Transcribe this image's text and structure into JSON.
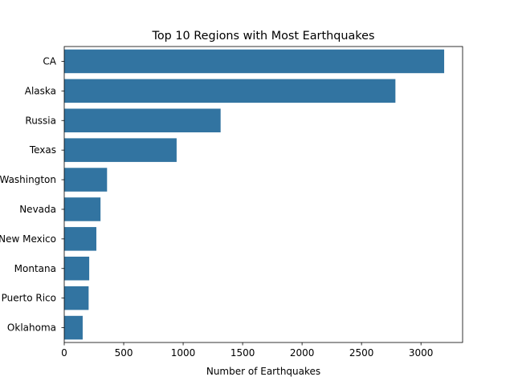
{
  "chart_data": {
    "type": "bar",
    "orientation": "horizontal",
    "title": "Top 10 Regions with Most Earthquakes",
    "xlabel": "Number of Earthquakes",
    "ylabel": "",
    "categories": [
      "CA",
      "Alaska",
      "Russia",
      "Texas",
      "Washington",
      "Nevada",
      "New Mexico",
      "Montana",
      "Puerto Rico",
      "Oklahoma"
    ],
    "series": [
      {
        "values": [
          3195,
          2785,
          1315,
          945,
          360,
          305,
          270,
          210,
          205,
          155
        ]
      }
    ],
    "xlim": [
      0,
      3350
    ],
    "xticks": [
      0,
      500,
      1000,
      1500,
      2000,
      2500,
      3000
    ],
    "xtick_labels": [
      "0",
      "500",
      "1000",
      "1500",
      "2000",
      "2500",
      "3000"
    ],
    "grid": false,
    "bar_color": "#3274a1"
  }
}
